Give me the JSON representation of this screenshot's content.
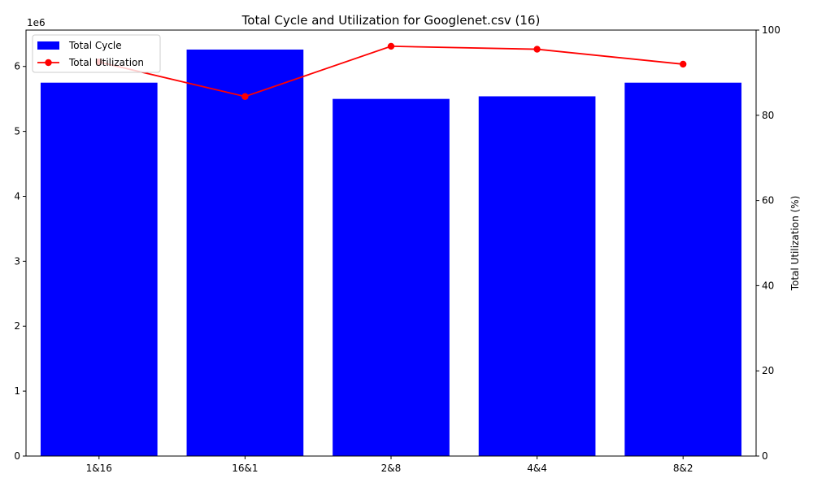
{
  "chart_data": {
    "type": "bar",
    "title": "Total Cycle and Utilization for Googlenet.csv (16)",
    "categories": [
      "1&16",
      "16&1",
      "2&8",
      "4&4",
      "8&2"
    ],
    "left_axis": {
      "label": "",
      "offset_text": "1e6",
      "ylim": [
        0,
        6.56
      ],
      "ticks": [
        0,
        1,
        2,
        3,
        4,
        5,
        6
      ],
      "tick_labels": [
        "0",
        "1",
        "2",
        "3",
        "4",
        "5",
        "6"
      ]
    },
    "right_axis": {
      "label": "Total Utilization (%)",
      "ylim": [
        0,
        100
      ],
      "ticks": [
        0,
        20,
        40,
        60,
        80,
        100
      ],
      "tick_labels": [
        "0",
        "20",
        "40",
        "60",
        "80",
        "100"
      ]
    },
    "series": [
      {
        "name": "Total Cycle",
        "kind": "bar",
        "axis": "left",
        "color": "#0000ff",
        "values": [
          5750000,
          6260000,
          5500000,
          5540000,
          5750000
        ]
      },
      {
        "name": "Total Utilization",
        "kind": "line",
        "axis": "right",
        "color": "#ff0000",
        "values": [
          92.5,
          84.4,
          96.2,
          95.5,
          92.0
        ]
      }
    ],
    "legend": {
      "position": "top-left"
    },
    "grid": false
  }
}
